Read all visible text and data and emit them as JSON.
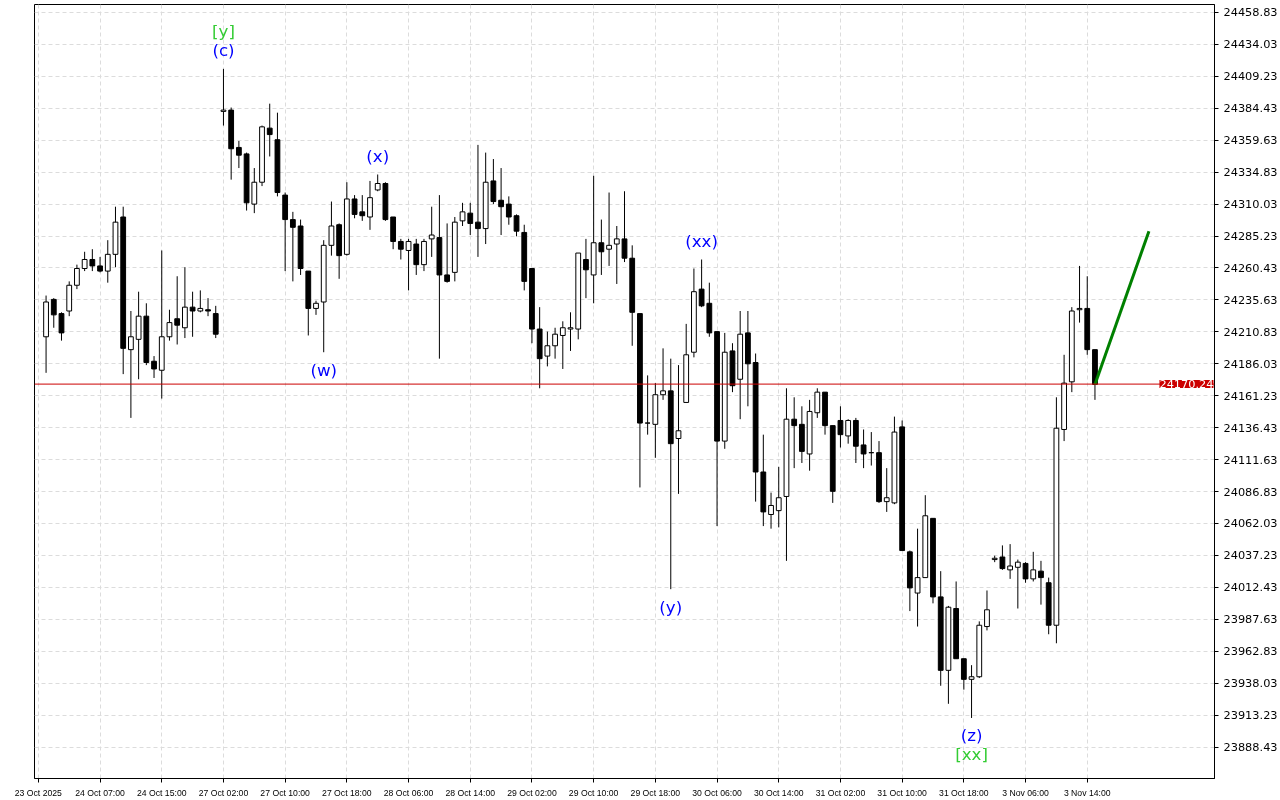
{
  "chart_data": {
    "type": "candlestick",
    "categories": [
      "23 Oct 2025",
      null,
      null,
      null,
      null,
      null,
      null,
      null,
      "24 Oct 07:00",
      null,
      null,
      null,
      null,
      null,
      null,
      null,
      "24 Oct 15:00",
      null,
      null,
      null,
      null,
      null,
      null,
      null,
      "27 Oct 02:00",
      null,
      null,
      null,
      null,
      null,
      null,
      null,
      "27 Oct 10:00",
      null,
      null,
      null,
      null,
      null,
      null,
      null,
      "27 Oct 18:00",
      null,
      null,
      null,
      null,
      null,
      null,
      null,
      "28 Oct 06:00",
      null,
      null,
      null,
      null,
      null,
      null,
      null,
      "28 Oct 14:00",
      null,
      null,
      null,
      null,
      null,
      null,
      null,
      "29 Oct 02:00",
      null,
      null,
      null,
      null,
      null,
      null,
      null,
      "29 Oct 10:00",
      null,
      null,
      null,
      null,
      null,
      null,
      null,
      "29 Oct 18:00",
      null,
      null,
      null,
      null,
      null,
      null,
      null,
      "30 Oct 06:00",
      null,
      null,
      null,
      null,
      null,
      null,
      null,
      "30 Oct 14:00",
      null,
      null,
      null,
      null,
      null,
      null,
      null,
      "31 Oct 02:00",
      null,
      null,
      null,
      null,
      null,
      null,
      null,
      "31 Oct 10:00",
      null,
      null,
      null,
      null,
      null,
      null,
      null,
      "31 Oct 18:00",
      null,
      null,
      null,
      null,
      null,
      null,
      null,
      "3 Nov 06:00",
      null,
      null,
      null,
      null,
      null,
      null,
      null,
      "3 Nov 14:00",
      null,
      null,
      null,
      null,
      null,
      null,
      null,
      null,
      null,
      null,
      null,
      null,
      null,
      null,
      null,
      null
    ],
    "ohlc": [
      null,
      [
        24207,
        24239,
        24179,
        24234
      ],
      [
        24236,
        24237,
        24214,
        24224
      ],
      [
        24225,
        24226,
        24204,
        24210
      ],
      [
        24227,
        24250,
        24223,
        24247
      ],
      [
        24247,
        24263,
        24244,
        24260
      ],
      [
        24260,
        24273,
        24258,
        24267
      ],
      [
        24267,
        24275,
        24258,
        24262
      ],
      [
        24262,
        24269,
        24257,
        24258
      ],
      [
        24258,
        24282,
        24249,
        24271
      ],
      [
        24271,
        24308,
        24261,
        24296
      ],
      [
        24300,
        24308,
        24178,
        24198
      ],
      [
        24197,
        24227,
        24144,
        24207
      ],
      [
        24205,
        24242,
        24174,
        24223
      ],
      [
        24223,
        24233,
        24185,
        24187
      ],
      [
        24188,
        24192,
        24175,
        24182
      ],
      [
        24181,
        24274,
        24159,
        24207
      ],
      [
        24207,
        24228,
        24204,
        24218
      ],
      [
        24221,
        24254,
        24201,
        24216
      ],
      [
        24214,
        24261,
        24206,
        24230
      ],
      [
        24230,
        24242,
        24207,
        24227
      ],
      [
        24227,
        24243,
        24226,
        24229
      ],
      [
        24228,
        24237,
        24223,
        24227
      ],
      [
        24225,
        24231,
        24206,
        24209
      ],
      [
        24382,
        24415,
        24371,
        24383
      ],
      [
        24383,
        24385,
        24329,
        24353
      ],
      [
        24354,
        24359,
        24338,
        24348
      ],
      [
        24349,
        24350,
        24305,
        24311
      ],
      [
        24310,
        24338,
        24303,
        24327
      ],
      [
        24327,
        24371,
        24324,
        24370
      ],
      [
        24369,
        24388,
        24347,
        24364
      ],
      [
        24360,
        24381,
        24316,
        24319
      ],
      [
        24317,
        24319,
        24258,
        24298
      ],
      [
        24298,
        24304,
        24250,
        24292
      ],
      [
        24293,
        24298,
        24255,
        24260
      ],
      [
        24258,
        24258,
        24208,
        24229
      ],
      [
        24229,
        24235,
        24224,
        24233
      ],
      [
        24234,
        24282,
        24195,
        24278
      ],
      [
        24278,
        24312,
        24270,
        24293
      ],
      [
        24294,
        24295,
        24252,
        24270
      ],
      [
        24271,
        24327,
        24270,
        24314
      ],
      [
        24314,
        24317,
        24299,
        24302
      ],
      [
        24304,
        24317,
        24297,
        24301
      ],
      [
        24300,
        24328,
        24290,
        24315
      ],
      [
        24321,
        24333,
        24320,
        24326
      ],
      [
        24326,
        24327,
        24297,
        24298
      ],
      [
        24300,
        24300,
        24275,
        24281
      ],
      [
        24281,
        24283,
        24267,
        24275
      ],
      [
        24274,
        24283,
        24243,
        24281
      ],
      [
        24279,
        24283,
        24255,
        24263
      ],
      [
        24263,
        24283,
        24258,
        24281
      ],
      [
        24283,
        24308,
        24269,
        24286
      ],
      [
        24284,
        24317,
        24190,
        24255
      ],
      [
        24255,
        24295,
        24249,
        24250
      ],
      [
        24257,
        24300,
        24250,
        24296
      ],
      [
        24297,
        24311,
        24293,
        24304
      ],
      [
        24303,
        24311,
        24286,
        24295
      ],
      [
        24296,
        24356,
        24269,
        24291
      ],
      [
        24291,
        24350,
        24279,
        24327
      ],
      [
        24328,
        24345,
        24310,
        24312
      ],
      [
        24313,
        24338,
        24286,
        24308
      ],
      [
        24310,
        24316,
        24294,
        24300
      ],
      [
        24301,
        24302,
        24285,
        24289
      ],
      [
        24288,
        24294,
        24243,
        24250
      ],
      [
        24260,
        24260,
        24202,
        24213
      ],
      [
        24213,
        24230,
        24167,
        24190
      ],
      [
        24192,
        24211,
        24184,
        24200
      ],
      [
        24200,
        24214,
        24190,
        24209
      ],
      [
        24208,
        24219,
        24182,
        24214
      ],
      [
        24213,
        24226,
        24196,
        24214
      ],
      [
        24213,
        24272,
        24205,
        24272
      ],
      [
        24267,
        24283,
        24237,
        24259
      ],
      [
        24255,
        24332,
        24233,
        24280
      ],
      [
        24280,
        24298,
        24255,
        24273
      ],
      [
        24275,
        24319,
        24262,
        24278
      ],
      [
        24279,
        24293,
        24248,
        24283
      ],
      [
        24283,
        24320,
        24265,
        24268
      ],
      [
        24268,
        24278,
        24200,
        24226
      ],
      [
        24225,
        24225,
        24090,
        24140
      ],
      [
        24140,
        24177,
        24131,
        24140
      ],
      [
        24139,
        24171,
        24113,
        24162
      ],
      [
        24162,
        24198,
        24158,
        24165
      ],
      [
        24165,
        24190,
        24011,
        24124
      ],
      [
        24128,
        24185,
        24085,
        24134
      ],
      [
        24156,
        24217,
        24156,
        24193
      ],
      [
        24195,
        24260,
        24191,
        24242
      ],
      [
        24244,
        24267,
        24230,
        24231
      ],
      [
        24233,
        24249,
        24207,
        24210
      ],
      [
        24211,
        24211,
        24060,
        24126
      ],
      [
        24126,
        24210,
        24120,
        24195
      ],
      [
        24196,
        24202,
        24164,
        24169
      ],
      [
        24174,
        24227,
        24143,
        24209
      ],
      [
        24210,
        24227,
        24153,
        24186
      ],
      [
        24187,
        24194,
        24079,
        24102
      ],
      [
        24102,
        24131,
        24060,
        24071
      ],
      [
        24069,
        24086,
        24058,
        24076
      ],
      [
        24072,
        24106,
        24059,
        24082
      ],
      [
        24083,
        24167,
        24033,
        24143
      ],
      [
        24143,
        24160,
        24105,
        24138
      ],
      [
        24139,
        24153,
        24109,
        24118
      ],
      [
        24116,
        24158,
        24103,
        24149
      ],
      [
        24148,
        24167,
        24144,
        24164
      ],
      [
        24164,
        24164,
        24131,
        24138
      ],
      [
        24138,
        24138,
        24078,
        24087
      ],
      [
        24142,
        24153,
        24121,
        24131
      ],
      [
        24130,
        24143,
        24124,
        24142
      ],
      [
        24142,
        24144,
        24109,
        24122
      ],
      [
        24123,
        24135,
        24105,
        24116
      ],
      [
        24117,
        24133,
        24107,
        24117
      ],
      [
        24117,
        24126,
        24078,
        24079
      ],
      [
        24079,
        24105,
        24071,
        24082
      ],
      [
        24078,
        24145,
        24077,
        24133
      ],
      [
        24137,
        24142,
        24041,
        24041
      ],
      [
        24040,
        24041,
        23994,
        24012
      ],
      [
        24008,
        24058,
        23982,
        24020
      ],
      [
        24020,
        24084,
        24020,
        24068
      ],
      [
        24066,
        24066,
        24000,
        24005
      ],
      [
        24005,
        24025,
        23936,
        23948
      ],
      [
        23948,
        23998,
        23922,
        23997
      ],
      [
        23996,
        24017,
        23957,
        23957
      ],
      [
        23957,
        23957,
        23933,
        23941
      ],
      [
        23941,
        23952,
        23911,
        23943
      ],
      [
        23943,
        23986,
        23942,
        23983
      ],
      [
        23982,
        24010,
        23979,
        23995
      ],
      [
        24034,
        24037,
        24032,
        24035
      ],
      [
        24036,
        24045,
        24026,
        24027
      ],
      [
        24026,
        24046,
        24019,
        24029
      ],
      [
        24028,
        24034,
        23996,
        24032
      ],
      [
        24031,
        24032,
        24016,
        24019
      ],
      [
        24019,
        24040,
        24017,
        24026
      ],
      [
        24025,
        24033,
        23999,
        24020
      ],
      [
        24016,
        24020,
        23976,
        23983
      ],
      [
        23983,
        24160,
        23969,
        24136
      ],
      [
        24135,
        24193,
        24126,
        24171
      ],
      [
        24172,
        24230,
        24164,
        24227
      ],
      [
        24228,
        24262,
        24218,
        24229
      ],
      [
        24229,
        24254,
        24193,
        24197
      ],
      [
        24197,
        24197,
        24158,
        24170
      ],
      null,
      null,
      null,
      null,
      null,
      null,
      null,
      null,
      null,
      null,
      null,
      null,
      null,
      null,
      null
    ],
    "series": [
      {
        "type": "line",
        "color": "#008000",
        "values": [
          null,
          null,
          null,
          null,
          null,
          null,
          null,
          null,
          null,
          null,
          null,
          null,
          null,
          null,
          null,
          null,
          null,
          null,
          null,
          null,
          null,
          null,
          null,
          null,
          null,
          null,
          null,
          null,
          null,
          null,
          null,
          null,
          null,
          null,
          null,
          null,
          null,
          null,
          null,
          null,
          null,
          null,
          null,
          null,
          null,
          null,
          null,
          null,
          null,
          null,
          null,
          null,
          null,
          null,
          null,
          null,
          null,
          null,
          null,
          null,
          null,
          null,
          null,
          null,
          null,
          null,
          null,
          null,
          null,
          null,
          null,
          null,
          null,
          null,
          null,
          null,
          null,
          null,
          null,
          null,
          null,
          null,
          null,
          null,
          null,
          null,
          null,
          null,
          null,
          null,
          null,
          null,
          null,
          null,
          null,
          null,
          null,
          null,
          null,
          null,
          null,
          null,
          null,
          null,
          null,
          null,
          null,
          null,
          null,
          null,
          null,
          null,
          null,
          null,
          null,
          null,
          null,
          null,
          null,
          null,
          null,
          null,
          null,
          null,
          null,
          null,
          null,
          null,
          null,
          null,
          null,
          null,
          null,
          null,
          null,
          null,
          null,
          24170,
          null,
          null,
          null,
          null,
          null,
          null,
          24289,
          null,
          null,
          null,
          null,
          null,
          null,
          null,
          null
        ]
      }
    ],
    "ylim": [
      23864,
      24465
    ],
    "yticks": [
      23888.43,
      23913.23,
      23938.03,
      23962.83,
      23987.63,
      24012.43,
      24037.23,
      24062.03,
      24086.83,
      24111.63,
      24136.43,
      24161.23,
      24186.03,
      24210.83,
      24235.63,
      24260.43,
      24285.23,
      24310.03,
      24334.83,
      24359.63,
      24384.43,
      24409.23,
      24434.03,
      24458.83
    ],
    "grid": true,
    "ref_lines": [
      {
        "axis": "y",
        "value": 24170.24,
        "label": "24170.24",
        "color": "#cc0000"
      }
    ],
    "annotations": [
      {
        "text": "(c)",
        "y": 24415
      },
      {
        "text": "[y]",
        "y": 24415
      },
      {
        "text": "(w)",
        "y": 24195
      },
      {
        "text": "(x)",
        "y": 24333
      },
      {
        "text": "(y)",
        "y": 24011
      },
      {
        "text": "(xx)",
        "y": 24267
      },
      {
        "text": "(z)",
        "y": 23911
      },
      {
        "text": "[xx]",
        "y": 23911
      }
    ]
  }
}
